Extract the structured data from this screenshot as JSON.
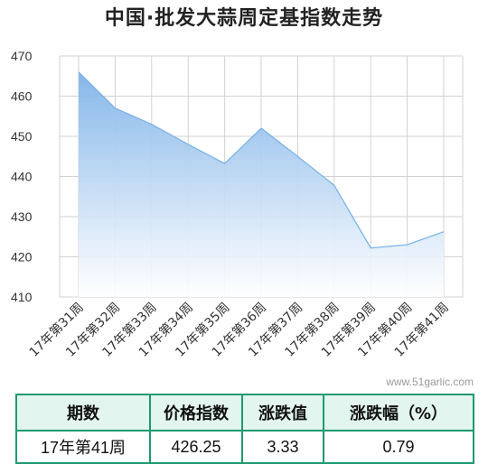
{
  "chart_data": {
    "type": "area",
    "title": "中国·批发大蒜周定基指数走势",
    "categories": [
      "17年第31周",
      "17年第32周",
      "17年第33周",
      "17年第34周",
      "17年第35周",
      "17年第36周",
      "17年第37周",
      "17年第38周",
      "17年第39周",
      "17年第40周",
      "17年第41周"
    ],
    "values": [
      466,
      457,
      453,
      448,
      443.2,
      452,
      445,
      437.8,
      422.2,
      423,
      426.25
    ],
    "ylim": [
      410,
      470
    ],
    "yticks": [
      "410",
      "420",
      "430",
      "440",
      "450",
      "460",
      "470"
    ],
    "grid": true,
    "legend": "none",
    "colors": {
      "line": "#7ab3e6",
      "fill_top": "#7fb3e8",
      "fill_bottom": "#ffffff",
      "grid": "#d2d2d2"
    }
  },
  "watermark": "www.51garlic.com",
  "table": {
    "headers": [
      "期数",
      "价格指数",
      "涨跌值",
      "涨跌幅（%）"
    ],
    "row": [
      "17年第41周",
      "426.25",
      "3.33",
      "0.79"
    ],
    "border_color": "#1f9a6e",
    "header_bg": "#e2f5ee"
  }
}
